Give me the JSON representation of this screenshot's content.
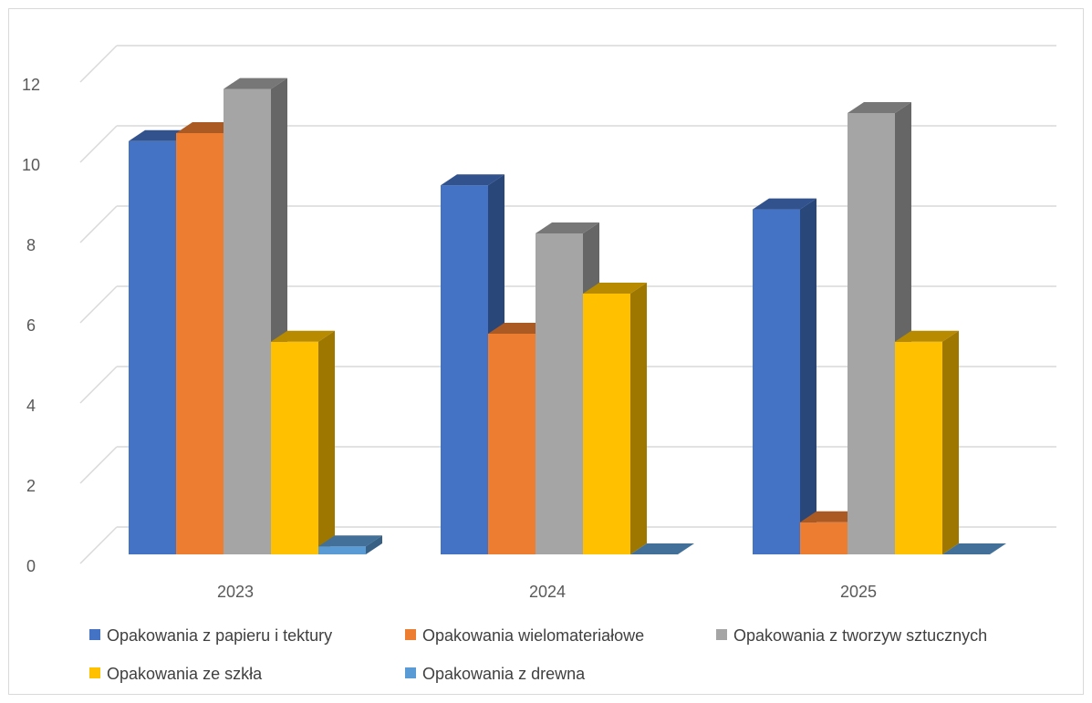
{
  "chart_data": {
    "type": "bar",
    "style": "3d-clustered-column",
    "categories": [
      "2023",
      "2024",
      "2025"
    ],
    "series": [
      {
        "name": "Opakowania z papieru i tektury",
        "color": "#4472C4",
        "values": [
          10.3,
          9.2,
          8.6
        ]
      },
      {
        "name": "Opakowania wielomateriałowe",
        "color": "#ED7D31",
        "values": [
          10.5,
          5.5,
          0.8
        ]
      },
      {
        "name": "Opakowania z tworzyw sztucznych",
        "color": "#A5A5A5",
        "values": [
          11.6,
          8.0,
          11.0
        ]
      },
      {
        "name": "Opakowania ze szkła",
        "color": "#FFC000",
        "values": [
          5.3,
          6.5,
          5.3
        ]
      },
      {
        "name": "Opakowania z drewna",
        "color": "#5B9BD5",
        "values": [
          0.2,
          0.0,
          0.0
        ]
      }
    ],
    "yticks": [
      "0",
      "2",
      "4",
      "6",
      "8",
      "10",
      "12"
    ],
    "ylim": [
      0,
      12
    ],
    "grid": true,
    "legend_position": "bottom",
    "title": "",
    "xlabel": "",
    "ylabel": ""
  }
}
